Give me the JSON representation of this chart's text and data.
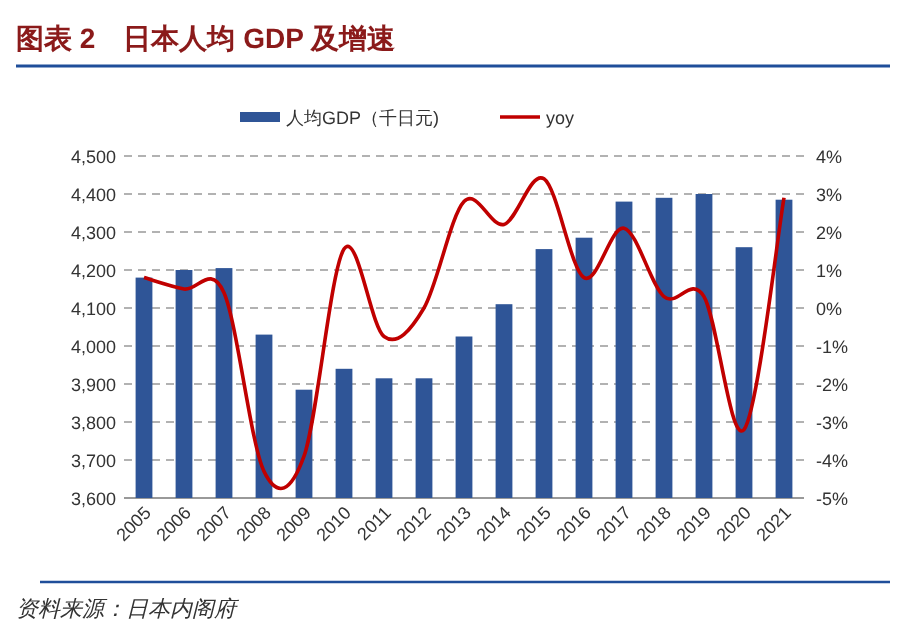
{
  "chart_data": {
    "type": "bar",
    "title": "图表 2　日本人均 GDP 及增速",
    "annotations": [
      "资料来源：日本内阁府"
    ],
    "categories": [
      "2005",
      "2006",
      "2007",
      "2008",
      "2009",
      "2010",
      "2011",
      "2012",
      "2013",
      "2014",
      "2015",
      "2016",
      "2017",
      "2018",
      "2019",
      "2020",
      "2021"
    ],
    "series": [
      {
        "name": "人均GDP（千日元)",
        "color": "#2f5597",
        "values": [
          4180,
          4200,
          4205,
          4030,
          3885,
          3940,
          3915,
          3915,
          4025,
          4110,
          4255,
          4285,
          4380,
          4390,
          4400,
          4260,
          4385
        ]
      },
      {
        "name": "yoy",
        "type": "line",
        "axis": "y2",
        "color": "#c00000",
        "values": [
          0.8,
          0.5,
          0.4,
          -4.3,
          -3.9,
          1.55,
          -0.75,
          0.0,
          2.8,
          2.2,
          3.4,
          0.8,
          2.1,
          0.3,
          0.3,
          -3.2,
          2.9
        ]
      }
    ],
    "ylim": [
      3600,
      4500
    ],
    "yticks": [
      {
        "value": 3600,
        "label": "3,600"
      },
      {
        "value": 3700,
        "label": "3,700"
      },
      {
        "value": 3800,
        "label": "3,800"
      },
      {
        "value": 3900,
        "label": "3,900"
      },
      {
        "value": 4000,
        "label": "4,000"
      },
      {
        "value": 4100,
        "label": "4,100"
      },
      {
        "value": 4200,
        "label": "4,200"
      },
      {
        "value": 4300,
        "label": "4,300"
      },
      {
        "value": 4400,
        "label": "4,400"
      },
      {
        "value": 4500,
        "label": "4,500"
      }
    ],
    "y2lim": [
      -5,
      4
    ],
    "y2ticks": [
      {
        "value": -5,
        "label": "-5%"
      },
      {
        "value": -4,
        "label": "-4%"
      },
      {
        "value": -3,
        "label": "-3%"
      },
      {
        "value": -2,
        "label": "-2%"
      },
      {
        "value": -1,
        "label": "-1%"
      },
      {
        "value": 0,
        "label": "0%"
      },
      {
        "value": 1,
        "label": "1%"
      },
      {
        "value": 2,
        "label": "2%"
      },
      {
        "value": 3,
        "label": "3%"
      },
      {
        "value": 4,
        "label": "4%"
      }
    ],
    "grid": "y",
    "legend": "top",
    "marker": "none",
    "line_style": "solid"
  }
}
